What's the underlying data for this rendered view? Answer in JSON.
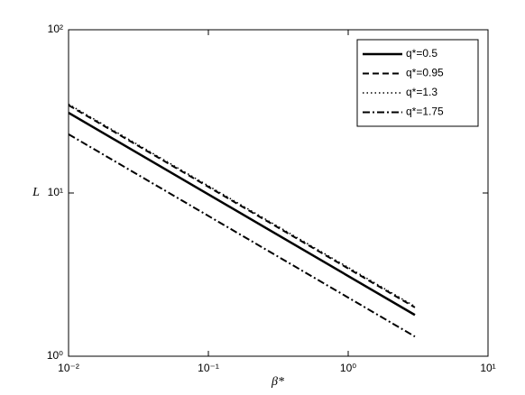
{
  "chart_data": {
    "type": "line",
    "x_label": "β*",
    "y_label": "L",
    "x": [
      0.01,
      3
    ],
    "series": [
      {
        "name": "q*=0.5",
        "color": "#000000",
        "dash": "solid",
        "values": [
          31,
          1.79
        ]
      },
      {
        "name": "q*=0.95",
        "color": "#000000",
        "dash": "dashed",
        "values": [
          34.5,
          1.99
        ]
      },
      {
        "name": "q*=1.3",
        "color": "#000000",
        "dash": "dotted",
        "values": [
          35,
          2.02
        ]
      },
      {
        "name": "q*=1.75",
        "color": "#000000",
        "dash": "dashdot",
        "values": [
          22.9,
          1.32
        ]
      }
    ],
    "xscale": "log",
    "yscale": "log",
    "xlim": [
      0.01,
      10
    ],
    "ylim": [
      1,
      100
    ],
    "xticks": [
      {
        "value": 0.01,
        "label": "10⁻²"
      },
      {
        "value": 0.1,
        "label": "10⁻¹"
      },
      {
        "value": 1,
        "label": "10⁰"
      },
      {
        "value": 10,
        "label": "10¹"
      }
    ],
    "yticks": [
      {
        "value": 1,
        "label": "10⁰"
      },
      {
        "value": 10,
        "label": "10¹"
      },
      {
        "value": 100,
        "label": "10²"
      }
    ],
    "legend": "upper right",
    "grid": false
  }
}
